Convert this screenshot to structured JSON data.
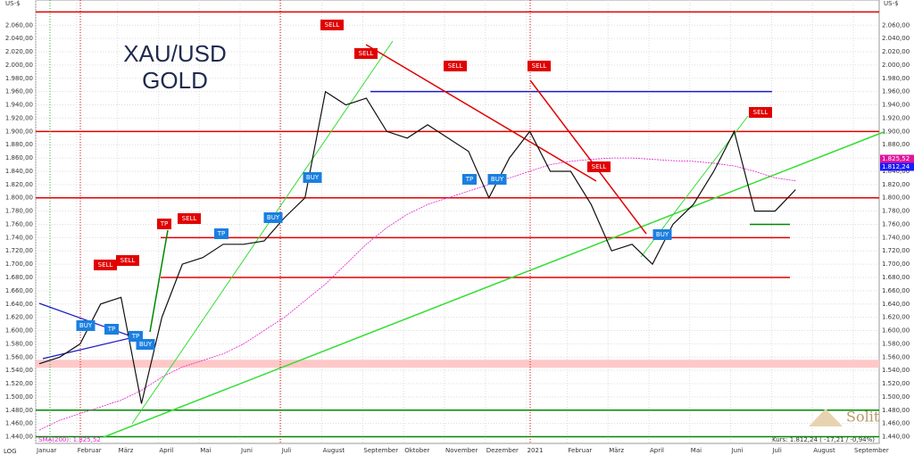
{
  "chart_data": {
    "type": "line",
    "title": "XAU/USD",
    "subtitle": "GOLD",
    "y_unit": "US-$",
    "scale_label": "LOG",
    "sma_caption": "SMA(200): 1.825,52",
    "price_caption": "Kurs: 1.812,24 ( -17,21 / -0,94%)",
    "brand": "Solit",
    "last_tags": [
      {
        "text": "1.825,52",
        "color": "#e0149c"
      },
      {
        "text": "1.812,24",
        "color": "#1a1aff"
      }
    ],
    "categories": [
      "Januar",
      null,
      "Februar",
      null,
      "März",
      null,
      "April",
      null,
      "Mai",
      null,
      "Juni",
      null,
      "Juli",
      null,
      "August",
      null,
      "September",
      null,
      "Oktober",
      null,
      "November",
      null,
      "Dezember",
      null,
      "2021",
      null,
      "Februar",
      null,
      "März",
      null,
      "April",
      null,
      "Mai",
      null,
      "Juni",
      null,
      "Juli",
      null,
      "August",
      null,
      "September",
      null
    ],
    "series": [
      {
        "name": "XAU/USD",
        "color": "#111111",
        "values": [
          1550,
          1560,
          1580,
          1640,
          1650,
          1490,
          1620,
          1700,
          1710,
          1730,
          1730,
          1735,
          1770,
          1800,
          1960,
          1940,
          1950,
          1900,
          1890,
          1910,
          1890,
          1870,
          1800,
          1860,
          1900,
          1840,
          1840,
          1790,
          1720,
          1730,
          1700,
          1760,
          1790,
          1840,
          1900,
          1780,
          1780,
          1812.24,
          null,
          null,
          null,
          null
        ]
      },
      {
        "name": "SMA(200)",
        "color": "#e020d0",
        "values": [
          1450,
          1465,
          1475,
          1485,
          1495,
          1510,
          1530,
          1545,
          1555,
          1565,
          1580,
          1600,
          1620,
          1645,
          1670,
          1700,
          1730,
          1755,
          1775,
          1790,
          1800,
          1810,
          1820,
          1830,
          1840,
          1850,
          1855,
          1858,
          1860,
          1860,
          1858,
          1856,
          1855,
          1852,
          1848,
          1840,
          1830,
          1825.52,
          null,
          null,
          null,
          null
        ]
      }
    ],
    "levels": [
      {
        "value": 2080,
        "color": "#e00000"
      },
      {
        "value": 1960,
        "color": "#1a1acc"
      },
      {
        "value": 1900,
        "color": "#e00000"
      },
      {
        "value": 1800,
        "color": "#e00000"
      },
      {
        "value": 1760,
        "color": "#008800"
      },
      {
        "value": 1740,
        "color": "#e00000"
      },
      {
        "value": 1680,
        "color": "#e00000"
      },
      {
        "value": 1550,
        "color": "#ffc8c8"
      },
      {
        "value": 1480,
        "color": "#008800"
      },
      {
        "value": 1440,
        "color": "#008800"
      }
    ],
    "annotations": [
      {
        "text": "BUY",
        "color": "#1a7fe0"
      },
      {
        "text": "TP",
        "color": "#1a7fe0"
      },
      {
        "text": "TP",
        "color": "#1a7fe0"
      },
      {
        "text": "BUY",
        "color": "#1a7fe0"
      },
      {
        "text": "SELL",
        "color": "#e00000"
      },
      {
        "text": "SELL",
        "color": "#e00000"
      },
      {
        "text": "TP",
        "color": "#e00000"
      },
      {
        "text": "SELL",
        "color": "#e00000"
      },
      {
        "text": "TP",
        "color": "#1a7fe0"
      },
      {
        "text": "BUY",
        "color": "#1a7fe0"
      },
      {
        "text": "BUY",
        "color": "#1a7fe0"
      },
      {
        "text": "SELL",
        "color": "#e00000"
      },
      {
        "text": "SELL",
        "color": "#e00000"
      },
      {
        "text": "SELL",
        "color": "#e00000"
      },
      {
        "text": "SELL",
        "color": "#e00000"
      },
      {
        "text": "TP",
        "color": "#1a7fe0"
      },
      {
        "text": "BUY",
        "color": "#1a7fe0"
      },
      {
        "text": "SELL",
        "color": "#e00000"
      },
      {
        "text": "BUY",
        "color": "#1a7fe0"
      },
      {
        "text": "SELL",
        "color": "#e00000"
      }
    ],
    "ylim": [
      1430,
      2098
    ],
    "yticks": [
      {
        "value": 1440,
        "label": "1.440,00"
      },
      {
        "value": 1460,
        "label": "1.460,00"
      },
      {
        "value": 1480,
        "label": "1.480,00"
      },
      {
        "value": 1500,
        "label": "1.500,00"
      },
      {
        "value": 1520,
        "label": "1.520,00"
      },
      {
        "value": 1540,
        "label": "1.540,00"
      },
      {
        "value": 1560,
        "label": "1.560,00"
      },
      {
        "value": 1580,
        "label": "1.580,00"
      },
      {
        "value": 1600,
        "label": "1.600,00"
      },
      {
        "value": 1620,
        "label": "1.620,00"
      },
      {
        "value": 1640,
        "label": "1.640,00"
      },
      {
        "value": 1660,
        "label": "1.660,00"
      },
      {
        "value": 1680,
        "label": "1.680,00"
      },
      {
        "value": 1700,
        "label": "1.700,00"
      },
      {
        "value": 1720,
        "label": "1.720,00"
      },
      {
        "value": 1740,
        "label": "1.740,00"
      },
      {
        "value": 1760,
        "label": "1.760,00"
      },
      {
        "value": 1780,
        "label": "1.780,00"
      },
      {
        "value": 1800,
        "label": "1.800,00"
      },
      {
        "value": 1820,
        "label": "1.820,00"
      },
      {
        "value": 1840,
        "label": "1.840,00"
      },
      {
        "value": 1860,
        "label": "1.860,00"
      },
      {
        "value": 1880,
        "label": "1.880,00"
      },
      {
        "value": 1900,
        "label": "1.900,00"
      },
      {
        "value": 1920,
        "label": "1.920,00"
      },
      {
        "value": 1940,
        "label": "1.940,00"
      },
      {
        "value": 1960,
        "label": "1.960,00"
      },
      {
        "value": 1980,
        "label": "1.980,00"
      },
      {
        "value": 2000,
        "label": "2.000,00"
      },
      {
        "value": 2020,
        "label": "2.020,00"
      },
      {
        "value": 2040,
        "label": "2.040,00"
      },
      {
        "value": 2060,
        "label": "2.060,00"
      }
    ],
    "grid": true
  }
}
